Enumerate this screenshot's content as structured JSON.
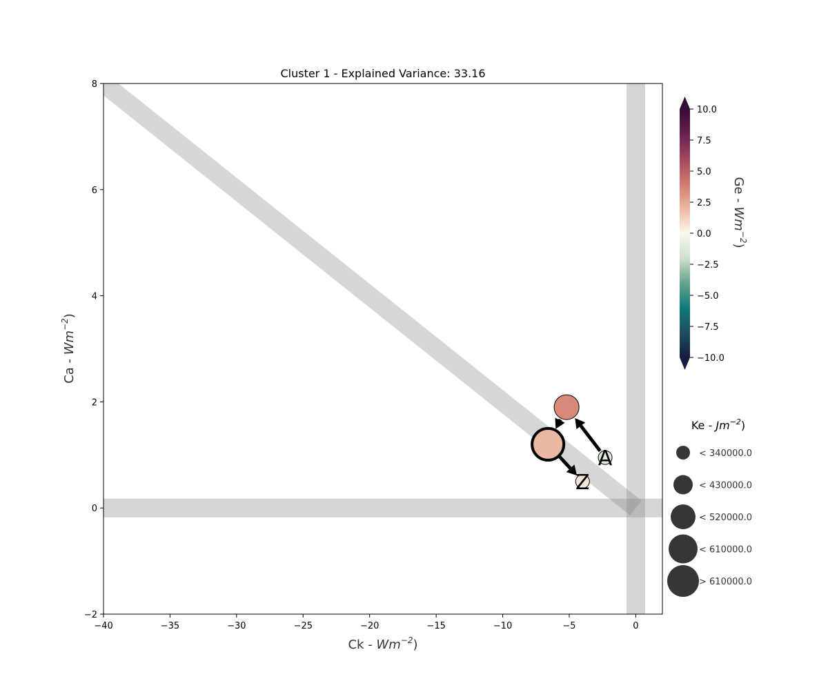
{
  "chart_data": {
    "type": "scatter",
    "title": "Cluster 1 - Explained Variance: 33.16",
    "xlabel": "Ck - ",
    "xlabel_math": "Wm",
    "xlabel_exp": "−2",
    "xlabel_close": ")",
    "ylabel": "Ca - ",
    "ylabel_math": "Wm",
    "ylabel_exp": "−2",
    "ylabel_close": ")",
    "xlim": [
      -40,
      2
    ],
    "ylim": [
      -2,
      8
    ],
    "xticks": [
      -40,
      -35,
      -30,
      -25,
      -20,
      -15,
      -10,
      -5,
      0
    ],
    "xtick_labels": [
      "−40",
      "−35",
      "−30",
      "−25",
      "−20",
      "−15",
      "−10",
      "−5",
      "0"
    ],
    "yticks": [
      -2,
      0,
      2,
      4,
      6,
      8
    ],
    "ytick_labels": [
      "−2",
      "0",
      "2",
      "4",
      "6",
      "8"
    ],
    "grid": false,
    "reference_lines": [
      {
        "kind": "horizontal",
        "y": 0
      },
      {
        "kind": "vertical",
        "x": 0
      },
      {
        "kind": "diagonal",
        "from": [
          -40,
          8
        ],
        "to": [
          0,
          0
        ]
      }
    ],
    "points": [
      {
        "x": -2.3,
        "y": 0.95,
        "ge": -1.2,
        "ke": 300000,
        "label": "A"
      },
      {
        "x": -5.2,
        "y": 1.9,
        "ge": 3.5,
        "ke": 450000,
        "label": ""
      },
      {
        "x": -6.6,
        "y": 1.2,
        "ge": 2.0,
        "ke": 650000,
        "label": ""
      },
      {
        "x": -4.0,
        "y": 0.5,
        "ge": 0.6,
        "ke": 320000,
        "label": "Z"
      }
    ],
    "path_order": [
      0,
      1,
      2,
      3
    ],
    "colorbar": {
      "label": "Ge - ",
      "label_math": "Wm",
      "label_exp": "−2",
      "label_close": ")",
      "min": -10,
      "max": 10,
      "cmap": "cmo.curl-like",
      "ticks": [
        10.0,
        7.5,
        5.0,
        2.5,
        0.0,
        -2.5,
        -5.0,
        -7.5,
        -10.0
      ],
      "tick_labels": [
        "10.0",
        "7.5",
        "5.0",
        "2.5",
        "0.0",
        "−2.5",
        "−5.0",
        "−7.5",
        "−10.0"
      ],
      "stops": [
        "#151d44",
        "#1d4e5f",
        "#0f7a7c",
        "#65a48e",
        "#cfe0cb",
        "#fdf7f1",
        "#ebb8a1",
        "#d07a6c",
        "#a3465f",
        "#67204f",
        "#340d35"
      ]
    },
    "size_legend": {
      "title": "Ke - ",
      "title_math": "Jm",
      "title_exp": "−2",
      "title_close": ")",
      "entries": [
        "< 340000.0",
        "< 430000.0",
        "< 520000.0",
        "< 610000.0",
        "> 610000.0"
      ],
      "color": "#363636"
    }
  }
}
